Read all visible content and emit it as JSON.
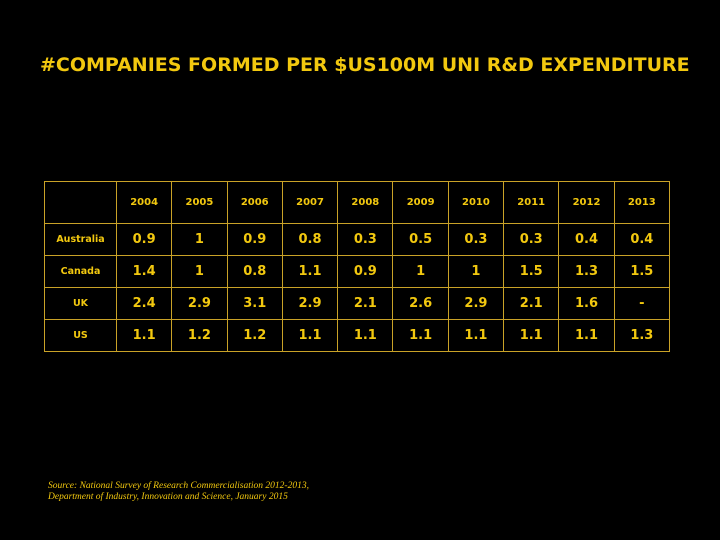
{
  "title": "#COMPANIES FORMED PER $US100M UNI R&D EXPENDITURE",
  "table": {
    "corner": "",
    "years": [
      "2004",
      "2005",
      "2006",
      "2007",
      "2008",
      "2009",
      "2010",
      "2011",
      "2012",
      "2013"
    ],
    "rows": [
      {
        "label": "Australia",
        "values": [
          "0.9",
          "1",
          "0.9",
          "0.8",
          "0.3",
          "0.5",
          "0.3",
          "0.3",
          "0.4",
          "0.4"
        ]
      },
      {
        "label": "Canada",
        "values": [
          "1.4",
          "1",
          "0.8",
          "1.1",
          "0.9",
          "1",
          "1",
          "1.5",
          "1.3",
          "1.5"
        ]
      },
      {
        "label": "UK",
        "values": [
          "2.4",
          "2.9",
          "3.1",
          "2.9",
          "2.1",
          "2.6",
          "2.9",
          "2.1",
          "1.6",
          "-"
        ]
      },
      {
        "label": "US",
        "values": [
          "1.1",
          "1.2",
          "1.2",
          "1.1",
          "1.1",
          "1.1",
          "1.1",
          "1.1",
          "1.1",
          "1.3"
        ]
      }
    ]
  },
  "source": {
    "line1": "Source: National Survey of Research Commercialisation 2012-2013,",
    "line2": "Department of Industry, Innovation and Science, January 2015"
  },
  "colors": {
    "background": "#000000",
    "accent": "#f2c80f",
    "border": "#c9a227"
  }
}
